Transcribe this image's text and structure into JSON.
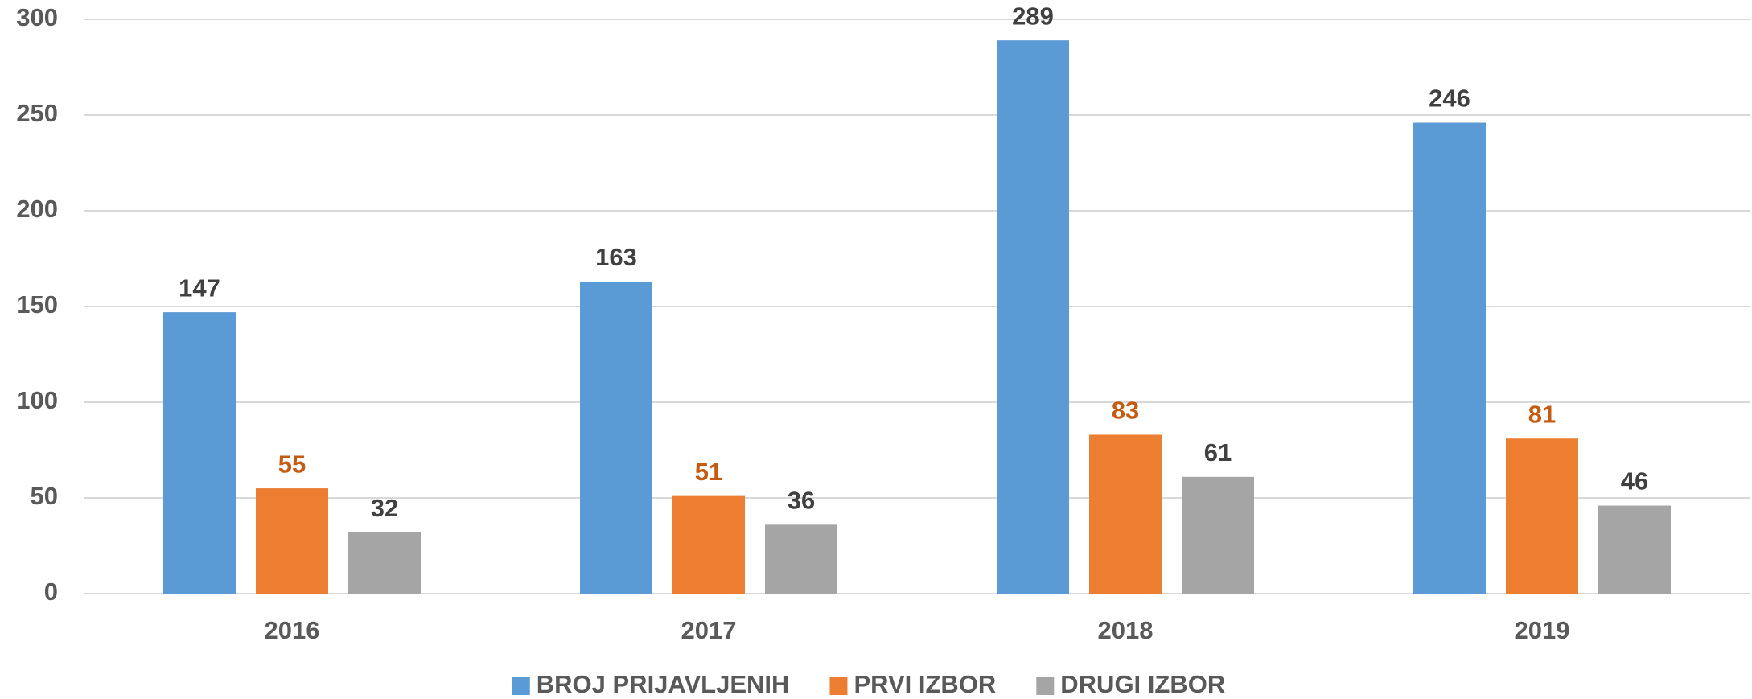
{
  "chart_data": {
    "type": "bar",
    "categories": [
      "2016",
      "2017",
      "2018",
      "2019"
    ],
    "series": [
      {
        "name": "BROJ PRIJAVLJENIH",
        "color": "#5b9bd5",
        "label_color": "#404040",
        "values": [
          147,
          163,
          289,
          246
        ]
      },
      {
        "name": "PRVI IZBOR",
        "color": "#ed7d31",
        "label_color": "#c55a11",
        "values": [
          55,
          51,
          83,
          81
        ]
      },
      {
        "name": "DRUGI IZBOR",
        "color": "#a5a5a5",
        "label_color": "#404040",
        "values": [
          32,
          36,
          61,
          46
        ]
      }
    ],
    "ylim": [
      0,
      300
    ],
    "yticks": [
      0,
      50,
      100,
      150,
      200,
      250,
      300
    ],
    "grid": true,
    "legend": "bottom"
  }
}
